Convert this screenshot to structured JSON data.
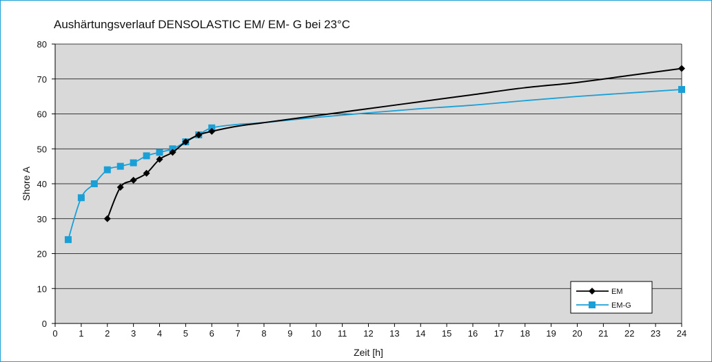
{
  "chart_data": {
    "type": "line",
    "title": "Aushärtungsverlauf DENSOLASTIC EM/ EM- G bei 23°C",
    "xlabel": "Zeit  [h]",
    "ylabel": "Shore A",
    "xlim": [
      0,
      24
    ],
    "ylim": [
      0,
      80
    ],
    "xticks": [
      0,
      1,
      2,
      3,
      4,
      5,
      6,
      7,
      8,
      9,
      10,
      11,
      12,
      13,
      14,
      15,
      16,
      17,
      18,
      19,
      20,
      21,
      22,
      23,
      24
    ],
    "yticks": [
      0,
      10,
      20,
      30,
      40,
      50,
      60,
      70,
      80
    ],
    "grid": "horizontal",
    "legend_position": "bottom-right",
    "plot_background": "#d9d9d9",
    "series": [
      {
        "name": "EM",
        "color": "#000000",
        "marker": "diamond",
        "points": [
          [
            2,
            30
          ],
          [
            2.5,
            39
          ],
          [
            3,
            41
          ],
          [
            3.5,
            43
          ],
          [
            4,
            47
          ],
          [
            4.5,
            49
          ],
          [
            5,
            52
          ],
          [
            5.5,
            54
          ],
          [
            6,
            55
          ],
          [
            24,
            73
          ]
        ],
        "curve_through": [
          [
            7,
            56.5
          ],
          [
            8,
            57.5
          ],
          [
            10,
            59.5
          ],
          [
            12,
            61.5
          ],
          [
            13,
            62.5
          ],
          [
            14,
            63.5
          ],
          [
            16,
            65.5
          ],
          [
            18,
            67.5
          ],
          [
            20,
            69
          ],
          [
            22,
            71
          ]
        ]
      },
      {
        "name": "EM-G",
        "color": "#1a9fd6",
        "marker": "square",
        "points": [
          [
            0.5,
            24
          ],
          [
            1,
            36
          ],
          [
            1.5,
            40
          ],
          [
            2,
            44
          ],
          [
            2.5,
            45
          ],
          [
            3,
            46
          ],
          [
            3.5,
            48
          ],
          [
            4,
            49
          ],
          [
            4.5,
            50
          ],
          [
            5,
            52
          ],
          [
            5.5,
            54
          ],
          [
            6,
            56
          ],
          [
            24,
            67
          ]
        ],
        "curve_through": [
          [
            7,
            57
          ],
          [
            8,
            57.5
          ],
          [
            10,
            59
          ],
          [
            12,
            60.3
          ],
          [
            14,
            61.5
          ],
          [
            16,
            62.5
          ],
          [
            18,
            63.8
          ],
          [
            20,
            65
          ],
          [
            22,
            66
          ]
        ]
      }
    ]
  }
}
